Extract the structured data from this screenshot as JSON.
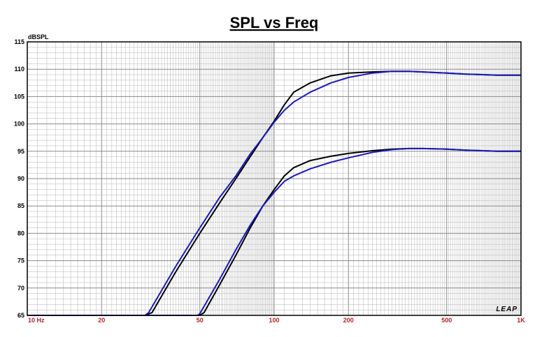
{
  "chart_data": {
    "type": "line",
    "title": "SPL vs Freq",
    "ylabel": "dBSPL",
    "xlabel": "",
    "xscale": "log",
    "xlim": [
      10,
      1000
    ],
    "ylim": [
      65,
      115
    ],
    "grid": true,
    "y_ticks": [
      "65",
      "70",
      "75",
      "80",
      "85",
      "90",
      "95",
      "100",
      "105",
      "110",
      "115"
    ],
    "x_ticks": [
      {
        "label": "10 Hz",
        "value": 10
      },
      {
        "label": "20",
        "value": 20
      },
      {
        "label": "50",
        "value": 50
      },
      {
        "label": "100",
        "value": 100
      },
      {
        "label": "200",
        "value": 200
      },
      {
        "label": "500",
        "value": 500
      },
      {
        "label": "1K",
        "value": 1000
      }
    ],
    "logo": "LEAP",
    "colors": {
      "black": "#000000",
      "blue": "#1a1ab8",
      "grid": "#b4b4b4",
      "tick_red": "#b22222"
    },
    "series": [
      {
        "color": "black",
        "x": [
          10,
          30,
          32,
          40,
          50,
          60,
          70,
          80,
          90,
          100,
          110,
          120,
          140,
          170,
          200,
          250,
          300,
          350,
          400,
          500,
          600,
          700,
          800,
          1000
        ],
        "y": [
          65,
          65,
          65.5,
          73,
          80,
          85.5,
          90,
          94,
          97.5,
          100.5,
          103.5,
          105.8,
          107.5,
          108.8,
          109.3,
          109.5,
          109.6,
          109.6,
          109.5,
          109.3,
          109.1,
          109,
          108.9,
          108.9
        ]
      },
      {
        "color": "blue",
        "x": [
          10,
          30,
          31,
          40,
          50,
          60,
          70,
          80,
          90,
          100,
          110,
          120,
          140,
          170,
          200,
          250,
          300,
          350,
          400,
          500,
          600,
          700,
          800,
          1000
        ],
        "y": [
          65,
          65,
          65.5,
          74,
          81,
          86.5,
          90.5,
          94.5,
          97.5,
          100.3,
          102.5,
          104,
          105.8,
          107.5,
          108.5,
          109.3,
          109.6,
          109.6,
          109.5,
          109.3,
          109.1,
          109,
          108.9,
          108.9
        ]
      },
      {
        "color": "black",
        "x": [
          10,
          50,
          52,
          60,
          70,
          80,
          90,
          100,
          110,
          120,
          140,
          170,
          200,
          250,
          300,
          350,
          400,
          500,
          600,
          700,
          800,
          1000
        ],
        "y": [
          65,
          65,
          65.5,
          70.5,
          76,
          81,
          85,
          88,
          90.5,
          92,
          93.3,
          94.1,
          94.6,
          95.1,
          95.4,
          95.5,
          95.5,
          95.4,
          95.2,
          95.1,
          95,
          95
        ]
      },
      {
        "color": "blue",
        "x": [
          10,
          49,
          50,
          60,
          70,
          80,
          90,
          100,
          110,
          120,
          140,
          170,
          200,
          250,
          300,
          350,
          400,
          500,
          600,
          700,
          800,
          1000
        ],
        "y": [
          65,
          65,
          65.3,
          71.5,
          77,
          81.5,
          85,
          87.5,
          89.5,
          90.5,
          91.8,
          93,
          93.8,
          94.8,
          95.3,
          95.5,
          95.5,
          95.4,
          95.2,
          95.1,
          95,
          95
        ]
      }
    ]
  }
}
